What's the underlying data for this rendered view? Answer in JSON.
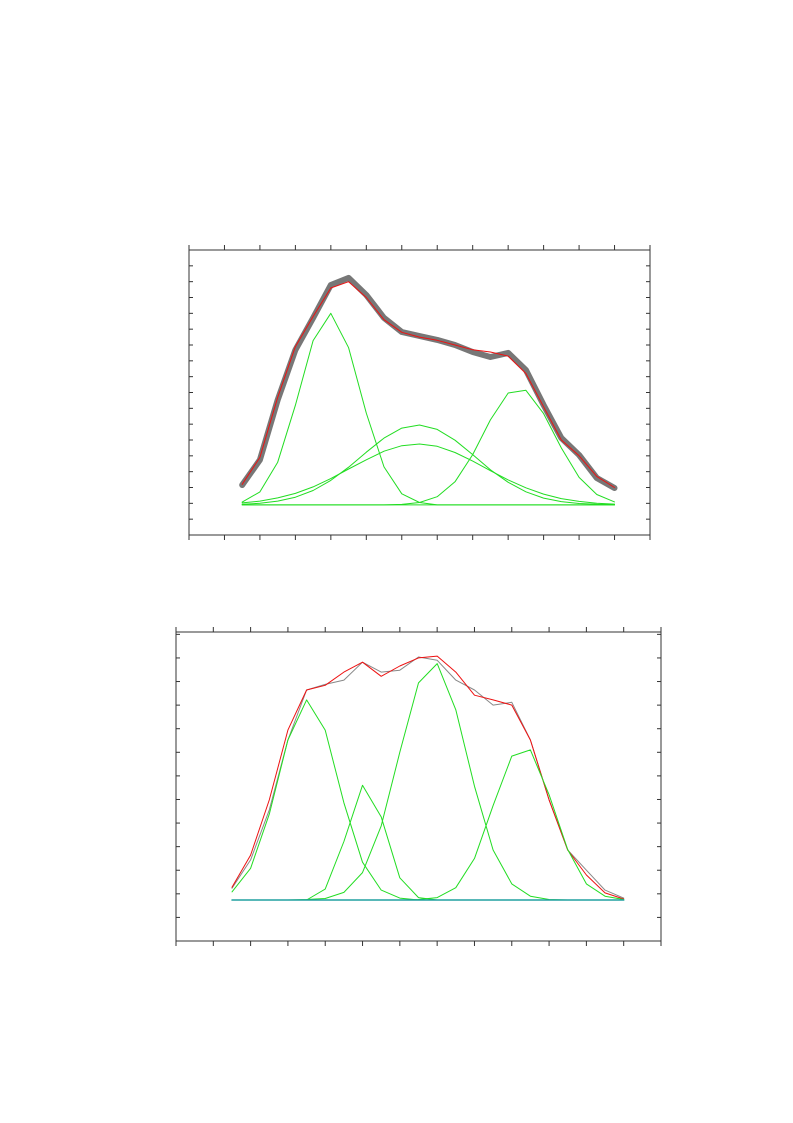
{
  "chart_data": [
    {
      "type": "line",
      "x": [
        1.5,
        2,
        2.5,
        3,
        3.5,
        4,
        4.5,
        5,
        5.5,
        6,
        6.5,
        7,
        7.5,
        8,
        8.5,
        9,
        9.5,
        10,
        10.5,
        11,
        11.5,
        12
      ],
      "series": [
        {
          "color": "#777777",
          "linewidth": 6,
          "values": [
            3.16,
            4.74,
            8.53,
            11.69,
            13.71,
            15.79,
            16.24,
            15.16,
            13.71,
            12.82,
            12.57,
            12.32,
            12.0,
            11.56,
            11.24,
            11.5,
            10.42,
            8.21,
            6.13,
            5.05,
            3.6,
            2.97
          ]
        },
        {
          "color": "#ee1111",
          "linewidth": 1,
          "values": [
            3.2,
            4.9,
            8.7,
            11.9,
            13.8,
            15.6,
            16.0,
            15.0,
            13.6,
            12.8,
            12.5,
            12.3,
            12.0,
            11.7,
            11.56,
            11.3,
            10.2,
            8.1,
            6.0,
            5.0,
            3.7,
            3.0
          ]
        },
        {
          "color": "#22dd22",
          "linewidth": 1,
          "values": [
            2.08,
            2.72,
            4.6,
            8.2,
            12.28,
            14.0,
            11.83,
            7.7,
            4.3,
            2.6,
            2.05,
            1.9,
            1.9,
            1.9,
            1.9,
            1.9,
            1.9,
            1.9,
            1.9,
            1.9,
            1.9,
            1.9
          ]
        },
        {
          "color": "#22dd22",
          "linewidth": 1,
          "values": [
            1.94,
            2.0,
            2.14,
            2.39,
            2.81,
            3.45,
            4.28,
            5.23,
            6.12,
            6.75,
            6.95,
            6.67,
            5.99,
            5.08,
            4.12,
            3.33,
            2.73,
            2.33,
            2.11,
            1.99,
            1.94,
            1.92
          ]
        },
        {
          "color": "#22dd22",
          "linewidth": 1,
          "values": [
            2.03,
            2.14,
            2.34,
            2.63,
            3.04,
            3.56,
            4.17,
            4.75,
            5.29,
            5.64,
            5.75,
            5.6,
            5.21,
            4.67,
            4.06,
            3.48,
            2.98,
            2.58,
            2.3,
            2.12,
            2.01,
            1.95
          ]
        },
        {
          "color": "#22dd22",
          "linewidth": 1,
          "values": [
            1.9,
            1.9,
            1.9,
            1.9,
            1.9,
            1.9,
            1.9,
            1.9,
            1.9,
            1.93,
            2.05,
            2.42,
            3.36,
            5.08,
            7.27,
            8.97,
            9.14,
            7.67,
            5.5,
            3.64,
            2.56,
            2.09
          ]
        },
        {
          "color": "#22dd22",
          "linewidth": 1,
          "values": [
            1.9,
            1.9,
            1.9,
            1.9,
            1.9,
            1.9,
            1.9,
            1.9,
            1.9,
            1.9,
            1.9,
            1.9,
            1.9,
            1.9,
            1.9,
            1.9,
            1.9,
            1.9,
            1.9,
            1.9,
            1.9,
            1.9
          ]
        }
      ],
      "xlim": [
        0,
        13
      ],
      "ylim": [
        0,
        18
      ],
      "xticks": [
        0,
        1,
        2,
        3,
        4,
        5,
        6,
        7,
        8,
        9,
        10,
        11,
        12,
        13
      ],
      "yticks": [
        1,
        2,
        3,
        4,
        5,
        6,
        7,
        8,
        9,
        10,
        11,
        12,
        13,
        14,
        15,
        16,
        17
      ]
    },
    {
      "type": "line",
      "x": [
        1.5,
        2,
        2.5,
        3,
        3.5,
        4,
        4.5,
        5,
        5.5,
        6,
        6.5,
        7,
        7.5,
        8,
        8.5,
        9,
        9.5,
        10,
        10.5,
        11,
        11.5,
        12
      ],
      "series": [
        {
          "color": "#888888",
          "linewidth": 1,
          "values": [
            1.12,
            1.72,
            2.78,
            4.26,
            5.32,
            5.44,
            5.53,
            5.91,
            5.7,
            5.74,
            6.02,
            5.95,
            5.53,
            5.32,
            5.0,
            5.06,
            4.26,
            2.99,
            1.93,
            1.5,
            1.08,
            0.91
          ]
        },
        {
          "color": "#ee1111",
          "linewidth": 1,
          "values": [
            1.14,
            1.82,
            2.99,
            4.47,
            5.32,
            5.42,
            5.7,
            5.91,
            5.61,
            5.83,
            6.0,
            6.04,
            5.7,
            5.21,
            5.11,
            5.0,
            4.26,
            2.99,
            1.93,
            1.4,
            1.02,
            0.89
          ]
        },
        {
          "color": "#22dd22",
          "linewidth": 1,
          "values": [
            1.04,
            1.54,
            2.69,
            4.26,
            5.11,
            4.47,
            2.93,
            1.67,
            1.08,
            0.91,
            0.87,
            0.87,
            0.87,
            0.87,
            0.87,
            0.87,
            0.87,
            0.87,
            0.87,
            0.87,
            0.87,
            0.87
          ]
        },
        {
          "color": "#22dd22",
          "linewidth": 1,
          "values": [
            0.87,
            0.87,
            0.87,
            0.87,
            0.87,
            1.1,
            2.11,
            3.3,
            2.63,
            1.34,
            0.92,
            0.87,
            0.87,
            0.87,
            0.87,
            0.87,
            0.87,
            0.87,
            0.87,
            0.87,
            0.87,
            0.87
          ]
        },
        {
          "color": "#22dd22",
          "linewidth": 1,
          "values": [
            0.87,
            0.87,
            0.87,
            0.87,
            0.88,
            0.9,
            1.03,
            1.45,
            2.44,
            4.0,
            5.47,
            5.88,
            4.9,
            3.28,
            1.93,
            1.21,
            0.95,
            0.88,
            0.87,
            0.87,
            0.87,
            0.87
          ]
        },
        {
          "color": "#22dd22",
          "linewidth": 1,
          "values": [
            0.87,
            0.87,
            0.87,
            0.87,
            0.87,
            0.87,
            0.87,
            0.87,
            0.87,
            0.87,
            0.88,
            0.92,
            1.13,
            1.75,
            2.87,
            3.92,
            4.05,
            3.1,
            1.94,
            1.21,
            0.95,
            0.88
          ]
        },
        {
          "color": "#20a0a0",
          "linewidth": 1.5,
          "values": [
            0.87,
            0.87,
            0.87,
            0.87,
            0.87,
            0.87,
            0.87,
            0.87,
            0.87,
            0.87,
            0.87,
            0.87,
            0.87,
            0.87,
            0.87,
            0.87,
            0.87,
            0.87,
            0.87,
            0.87,
            0.87,
            0.87
          ]
        }
      ],
      "xlim": [
        0,
        13
      ],
      "ylim": [
        0,
        6.55
      ],
      "xticks": [
        0,
        1,
        2,
        3,
        4,
        5,
        6,
        7,
        8,
        9,
        10,
        11,
        12,
        13
      ],
      "yticks": [
        0.5,
        1,
        1.5,
        2,
        2.5,
        3,
        3.5,
        4,
        4.5,
        5,
        5.5,
        6,
        6.5
      ]
    }
  ]
}
